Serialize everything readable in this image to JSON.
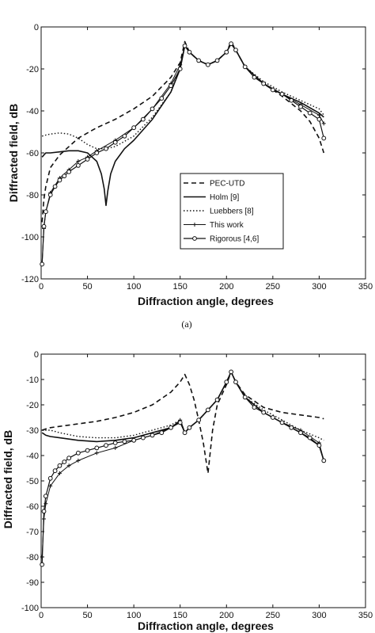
{
  "chart_data": [
    {
      "type": "line",
      "xlabel": "Diffraction angle, degrees",
      "ylabel": "Diffracted field, dB",
      "caption": "(a)",
      "xlim": [
        0,
        350
      ],
      "ylim": [
        -120,
        0
      ],
      "xticks": [
        0,
        50,
        100,
        150,
        200,
        250,
        300,
        350
      ],
      "yticks": [
        0,
        -20,
        -40,
        -60,
        -80,
        -100,
        -120
      ],
      "legend_position": "center-right",
      "series": [
        {
          "name": "PEC-UTD",
          "style": "dashed",
          "x": [
            1,
            3,
            5,
            10,
            20,
            40,
            60,
            80,
            100,
            120,
            140,
            150,
            155,
            160,
            170,
            180,
            190,
            200,
            205,
            210,
            220,
            240,
            260,
            280,
            290,
            300,
            305
          ],
          "y": [
            -93,
            -82,
            -76,
            -67,
            -61,
            -53,
            -48,
            -44,
            -39,
            -33,
            -24,
            -17,
            -7,
            -12,
            -16,
            -18,
            -16,
            -12,
            -7,
            -11,
            -19,
            -27,
            -33,
            -40,
            -45,
            -53,
            -60
          ]
        },
        {
          "name": "Holm [9]",
          "style": "solid",
          "x": [
            1,
            3,
            5,
            10,
            20,
            30,
            40,
            50,
            55,
            60,
            65,
            68,
            70,
            72,
            75,
            80,
            85,
            90,
            100,
            120,
            140,
            150,
            155,
            160,
            170,
            180,
            190,
            200,
            205,
            210,
            220,
            240,
            260,
            280,
            300,
            305
          ],
          "y": [
            -62,
            -61,
            -60,
            -60,
            -59.5,
            -59,
            -59,
            -60,
            -62,
            -64,
            -70,
            -77,
            -85,
            -78,
            -70,
            -64,
            -61,
            -58,
            -54,
            -44,
            -31,
            -20,
            -9,
            -12,
            -16,
            -18,
            -16,
            -12,
            -8,
            -11,
            -19,
            -27,
            -32,
            -36,
            -41,
            -43
          ]
        },
        {
          "name": "Luebbers [8]",
          "style": "dotted",
          "x": [
            1,
            5,
            10,
            20,
            30,
            40,
            50,
            60,
            70,
            80,
            100,
            120,
            140,
            150,
            155,
            160,
            170,
            180,
            190,
            200,
            205,
            210,
            220,
            240,
            260,
            280,
            300,
            305
          ],
          "y": [
            -52,
            -51.5,
            -51,
            -50.5,
            -51,
            -53,
            -56,
            -58,
            -58,
            -57,
            -52,
            -43,
            -31,
            -19,
            -9,
            -12,
            -16,
            -18,
            -16,
            -12,
            -8,
            -11,
            -19,
            -26,
            -31,
            -35,
            -39,
            -42
          ]
        },
        {
          "name": "This work",
          "style": "solid-plus",
          "x": [
            1,
            3,
            5,
            10,
            20,
            30,
            40,
            50,
            60,
            80,
            100,
            120,
            140,
            150,
            155,
            160,
            170,
            180,
            190,
            200,
            205,
            210,
            220,
            240,
            260,
            280,
            300,
            305
          ],
          "y": [
            -113,
            -96,
            -88,
            -79,
            -72,
            -68,
            -64,
            -62,
            -59,
            -54,
            -48,
            -39,
            -27,
            -18,
            -9,
            -12,
            -16,
            -18,
            -16,
            -12,
            -8,
            -11,
            -19,
            -27,
            -32,
            -37,
            -42,
            -46
          ]
        },
        {
          "name": "Rigorous [4,6]",
          "style": "solid-circle",
          "x": [
            1,
            3,
            5,
            10,
            15,
            20,
            25,
            30,
            40,
            50,
            60,
            70,
            80,
            90,
            100,
            110,
            120,
            130,
            140,
            150,
            155,
            160,
            170,
            180,
            190,
            200,
            205,
            210,
            220,
            230,
            240,
            250,
            260,
            270,
            280,
            290,
            300,
            305
          ],
          "y": [
            -113,
            -95,
            -88,
            -80,
            -76,
            -73,
            -71,
            -69,
            -66,
            -63,
            -60,
            -58,
            -55,
            -52,
            -48,
            -44,
            -39,
            -34,
            -28,
            -20,
            -9,
            -12,
            -16,
            -18,
            -16,
            -12,
            -8,
            -11,
            -19,
            -24,
            -27,
            -30,
            -32,
            -35,
            -38,
            -41,
            -44,
            -53
          ]
        }
      ]
    },
    {
      "type": "line",
      "xlabel": "Diffraction angle, degrees",
      "ylabel": "Diffracted field, dB",
      "xlim": [
        0,
        350
      ],
      "ylim": [
        -100,
        0
      ],
      "xticks": [
        0,
        50,
        100,
        150,
        200,
        250,
        300,
        350
      ],
      "yticks": [
        0,
        -10,
        -20,
        -30,
        -40,
        -50,
        -60,
        -70,
        -80,
        -90,
        -100
      ],
      "series": [
        {
          "name": "PEC-UTD",
          "style": "dashed",
          "x": [
            1,
            5,
            10,
            20,
            40,
            60,
            80,
            100,
            120,
            140,
            150,
            155,
            160,
            165,
            170,
            175,
            180,
            185,
            190,
            200,
            205,
            210,
            220,
            240,
            260,
            280,
            300,
            305
          ],
          "y": [
            -30,
            -29.5,
            -29,
            -28.5,
            -27.5,
            -26.5,
            -25,
            -23,
            -20,
            -15,
            -11,
            -8,
            -12,
            -18,
            -26,
            -35,
            -47,
            -30,
            -20,
            -12,
            -7,
            -11,
            -16,
            -21,
            -23,
            -24,
            -25,
            -25.5
          ]
        },
        {
          "name": "Holm [9]",
          "style": "solid",
          "x": [
            1,
            5,
            10,
            20,
            30,
            40,
            60,
            80,
            100,
            120,
            140,
            148,
            150,
            152,
            155,
            160,
            170,
            180,
            190,
            200,
            205,
            210,
            220,
            240,
            260,
            280,
            300,
            305
          ],
          "y": [
            -31,
            -32,
            -32.5,
            -33,
            -33.5,
            -34,
            -34.5,
            -34,
            -33,
            -31,
            -29,
            -27,
            -26,
            -28,
            -31,
            -29,
            -26,
            -22,
            -18,
            -11,
            -7,
            -11,
            -17,
            -23,
            -27,
            -31,
            -36,
            -42
          ]
        },
        {
          "name": "Luebbers [8]",
          "style": "dotted",
          "x": [
            1,
            5,
            10,
            20,
            40,
            60,
            80,
            100,
            120,
            140,
            150,
            155,
            160,
            170,
            180,
            190,
            200,
            205,
            210,
            220,
            240,
            260,
            280,
            300,
            305
          ],
          "y": [
            -30,
            -30,
            -30,
            -31,
            -32.5,
            -33,
            -33,
            -32,
            -30,
            -28,
            -26,
            -31,
            -29,
            -26,
            -22,
            -18,
            -11,
            -7,
            -11,
            -17,
            -22,
            -26,
            -30,
            -33,
            -34
          ]
        },
        {
          "name": "This work",
          "style": "solid-plus",
          "x": [
            1,
            3,
            5,
            10,
            20,
            30,
            40,
            60,
            80,
            100,
            120,
            140,
            150,
            155,
            160,
            170,
            180,
            190,
            200,
            205,
            210,
            220,
            240,
            260,
            280,
            300,
            305
          ],
          "y": [
            -80,
            -65,
            -59,
            -52,
            -47,
            -44,
            -42,
            -39,
            -37,
            -34,
            -32,
            -29,
            -26,
            -31,
            -29,
            -26,
            -22,
            -18,
            -11,
            -7,
            -11,
            -17,
            -23,
            -27,
            -30,
            -35,
            -42
          ]
        },
        {
          "name": "Rigorous [4,6]",
          "style": "solid-circle",
          "x": [
            1,
            3,
            5,
            10,
            15,
            20,
            25,
            30,
            40,
            50,
            60,
            70,
            80,
            90,
            100,
            110,
            120,
            130,
            140,
            150,
            155,
            160,
            170,
            180,
            190,
            200,
            205,
            210,
            220,
            230,
            240,
            250,
            260,
            270,
            280,
            290,
            300,
            305
          ],
          "y": [
            -83,
            -62,
            -56,
            -49,
            -46,
            -44,
            -42.5,
            -41,
            -39,
            -38,
            -37,
            -36,
            -35,
            -34.5,
            -34,
            -33,
            -32,
            -31,
            -29,
            -27,
            -31,
            -29,
            -26,
            -22,
            -18,
            -11,
            -7,
            -11,
            -17,
            -21,
            -23,
            -25,
            -27,
            -29,
            -31,
            -33,
            -36,
            -42
          ]
        }
      ]
    }
  ]
}
